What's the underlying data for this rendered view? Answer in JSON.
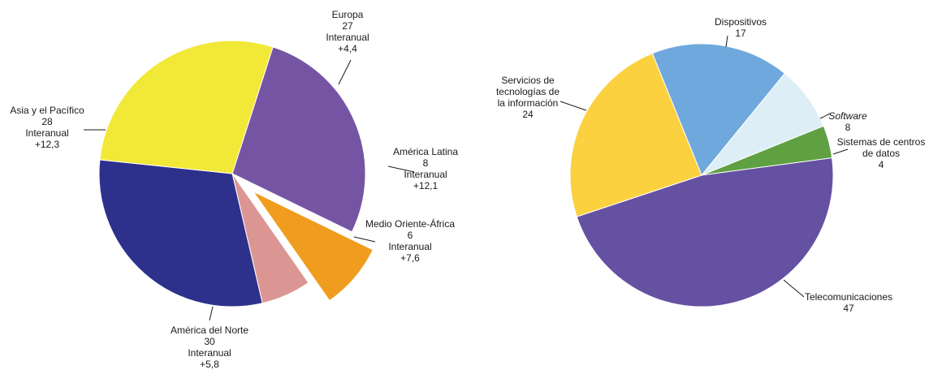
{
  "chart_data": [
    {
      "type": "pie",
      "title": "",
      "slices": [
        {
          "label": "Europa",
          "value": 27,
          "sublabel": "Interanual",
          "change": "+4,4",
          "color": "#7555A3",
          "exploded": false
        },
        {
          "label": "América Latina",
          "value": 8,
          "sublabel": "Interanual",
          "change": "+12,1",
          "color": "#F09C1E",
          "exploded": true
        },
        {
          "label": "Medio Oriente-África",
          "value": 6,
          "sublabel": "Interanual",
          "change": "+7,6",
          "color": "#DB9694",
          "exploded": false
        },
        {
          "label": "América del Norte",
          "value": 30,
          "sublabel": "Interanual",
          "change": "+5,8",
          "color": "#2E318B",
          "exploded": false
        },
        {
          "label": "Asia y el Pacífico",
          "value": 28,
          "sublabel": "Interanual",
          "change": "+12,3",
          "color": "#F2E837",
          "exploded": false
        }
      ]
    },
    {
      "type": "pie",
      "title": "",
      "slices": [
        {
          "label": "Dispositivos",
          "value": 17,
          "color": "#6FA8DC",
          "italic": false
        },
        {
          "label": "Software",
          "value": 8,
          "color": "#DDEEF6",
          "italic": true
        },
        {
          "label": "Sistemas de centros de datos",
          "value": 4,
          "color": "#5FA043",
          "italic": false
        },
        {
          "label": "Telecomunicaciones",
          "value": 47,
          "color": "#6551A2",
          "italic": false
        },
        {
          "label": "Servicios de tecnologías de la información",
          "value": 24,
          "color": "#FCD13F",
          "italic": false
        }
      ]
    }
  ]
}
